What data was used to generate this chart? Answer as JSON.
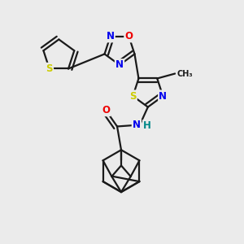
{
  "bg_color": "#ebebeb",
  "bond_color": "#1a1a1a",
  "bond_width": 1.6,
  "dbo": 0.018,
  "atom_colors": {
    "S": "#cccc00",
    "N": "#0000ee",
    "O": "#ee0000",
    "H": "#008888",
    "C": "#1a1a1a"
  },
  "fs": 8.5
}
